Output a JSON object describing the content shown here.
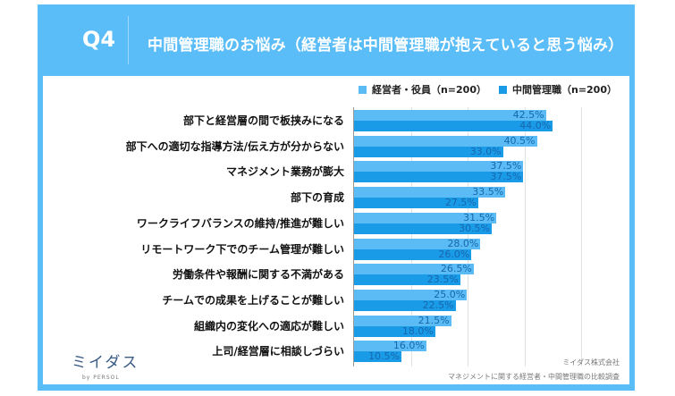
{
  "header": {
    "question": "Q4",
    "title": "中間管理職のお悩み（経営者は中間管理職が抱えていると思う悩み）"
  },
  "colors": {
    "frame": "#5bbdf7",
    "executives": "#5bbcf5",
    "middle_managers": "#1a9be8",
    "value_text": "#1767ad"
  },
  "chart_data": {
    "type": "bar",
    "orientation": "horizontal",
    "categories": [
      "部下と経営層の間で板挟みになる",
      "部下への適切な指導方法/伝え方が分からない",
      "マネジメント業務が膨大",
      "部下の育成",
      "ワークライフバランスの維持/推進が難しい",
      "リモートワーク下でのチーム管理が難しい",
      "労働条件や報酬に関する不満がある",
      "チームでの成果を上げることが難しい",
      "組織内の変化への適応が難しい",
      "上司/経営層に相談しづらい"
    ],
    "series": [
      {
        "name": "経営者・役員（n=200）",
        "values": [
          42.5,
          40.5,
          37.5,
          33.5,
          31.5,
          28.0,
          26.5,
          25.0,
          21.5,
          16.0
        ]
      },
      {
        "name": "中間管理職（n=200）",
        "values": [
          44.0,
          33.0,
          37.5,
          27.5,
          30.5,
          26.0,
          23.5,
          22.5,
          18.0,
          10.5
        ]
      }
    ],
    "unit": "%",
    "legend": "top-right",
    "grid": true
  },
  "footer": {
    "logo": "ミイダス",
    "logo_sub": "by PERSOL",
    "company": "ミイダス株式会社",
    "survey": "マネジメントに関する経営者・中間管理職の比較調査"
  }
}
